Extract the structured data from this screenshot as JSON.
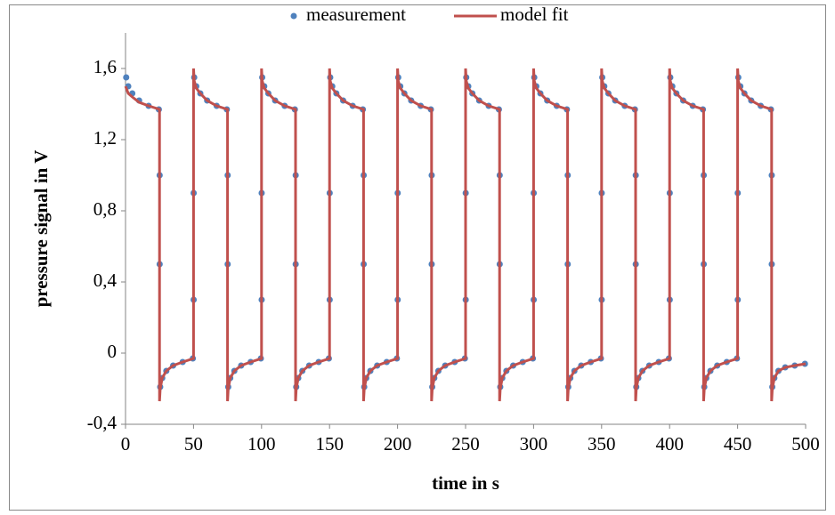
{
  "chart_data": {
    "type": "scatter-line",
    "xlabel": "time in s",
    "ylabel": "pressure signal in V",
    "xlim": [
      0,
      500
    ],
    "xticks": [
      0,
      50,
      100,
      150,
      200,
      250,
      300,
      350,
      400,
      450,
      500
    ],
    "ylim": [
      -0.4,
      1.8
    ],
    "yticks": [
      {
        "value": -0.4,
        "label": "-0,4"
      },
      0,
      {
        "value": 0.4,
        "label": "0,4"
      },
      {
        "value": 0.8,
        "label": "0,8"
      },
      {
        "value": 1.2,
        "label": "1,2"
      },
      {
        "value": 1.6,
        "label": "1,6"
      }
    ],
    "grid": false,
    "legend": "top",
    "series": [
      {
        "name": "measurement",
        "kind": "scatter",
        "color": "#4f81bd",
        "x": [
          0.5,
          2,
          5,
          10,
          17,
          24.5,
          25.1,
          25.1,
          25.5,
          27,
          30,
          35,
          42,
          49.5,
          50.1,
          50.1,
          50.5,
          52,
          55,
          60,
          67,
          74.5,
          75.1,
          75.1,
          75.5,
          77,
          80,
          85,
          92,
          99.5,
          100.1,
          100.1,
          100.5,
          102,
          105,
          110,
          117,
          124.5,
          125.1,
          125.1,
          125.5,
          127,
          130,
          135,
          142,
          149.5,
          150.1,
          150.1,
          150.5,
          152,
          155,
          160,
          167,
          174.5,
          175.1,
          175.1,
          175.5,
          177,
          180,
          185,
          192,
          199.5,
          200.1,
          200.1,
          200.5,
          202,
          205,
          210,
          217,
          224.5,
          225.1,
          225.1,
          225.5,
          227,
          230,
          235,
          242,
          249.5,
          250.1,
          250.1,
          250.5,
          252,
          255,
          260,
          267,
          274.5,
          275.1,
          275.1,
          275.5,
          277,
          280,
          285,
          292,
          299.5,
          300.1,
          300.1,
          300.5,
          302,
          305,
          310,
          317,
          324.5,
          325.1,
          325.1,
          325.5,
          327,
          330,
          335,
          342,
          349.5,
          350.1,
          350.1,
          350.5,
          352,
          355,
          360,
          367,
          374.5,
          375.1,
          375.1,
          375.5,
          377,
          380,
          385,
          392,
          399.5,
          400.1,
          400.1,
          400.5,
          402,
          405,
          410,
          417,
          424.5,
          425.1,
          425.1,
          425.5,
          427,
          430,
          435,
          442,
          449.5,
          450.1,
          450.1,
          450.5,
          452,
          455,
          460,
          467,
          474.5,
          475.1,
          475.1,
          475.5,
          477,
          480,
          485,
          492,
          499.5
        ],
        "values": [
          1.55,
          1.5,
          1.46,
          1.42,
          1.39,
          1.37,
          1,
          0.5,
          -0.19,
          -0.14,
          -0.1,
          -0.07,
          -0.05,
          -0.03,
          0.3,
          0.9,
          1.55,
          1.5,
          1.46,
          1.42,
          1.39,
          1.37,
          1,
          0.5,
          -0.19,
          -0.14,
          -0.1,
          -0.07,
          -0.05,
          -0.03,
          0.3,
          0.9,
          1.55,
          1.5,
          1.46,
          1.42,
          1.39,
          1.37,
          1,
          0.5,
          -0.19,
          -0.14,
          -0.1,
          -0.07,
          -0.05,
          -0.03,
          0.3,
          0.9,
          1.55,
          1.5,
          1.46,
          1.42,
          1.39,
          1.37,
          1,
          0.5,
          -0.19,
          -0.14,
          -0.1,
          -0.07,
          -0.05,
          -0.03,
          0.3,
          0.9,
          1.55,
          1.5,
          1.46,
          1.42,
          1.39,
          1.37,
          1,
          0.5,
          -0.19,
          -0.14,
          -0.1,
          -0.07,
          -0.05,
          -0.03,
          0.3,
          0.9,
          1.55,
          1.5,
          1.46,
          1.42,
          1.39,
          1.37,
          1,
          0.5,
          -0.19,
          -0.14,
          -0.1,
          -0.07,
          -0.05,
          -0.03,
          0.3,
          0.9,
          1.55,
          1.5,
          1.46,
          1.42,
          1.39,
          1.37,
          1,
          0.5,
          -0.19,
          -0.14,
          -0.1,
          -0.07,
          -0.05,
          -0.03,
          0.3,
          0.9,
          1.55,
          1.5,
          1.46,
          1.42,
          1.39,
          1.37,
          1,
          0.5,
          -0.19,
          -0.14,
          -0.1,
          -0.07,
          -0.05,
          -0.03,
          0.3,
          0.9,
          1.55,
          1.5,
          1.46,
          1.42,
          1.39,
          1.37,
          1,
          0.5,
          -0.19,
          -0.14,
          -0.1,
          -0.07,
          -0.05,
          -0.03,
          0.3,
          0.9,
          1.55,
          1.5,
          1.46,
          1.42,
          1.39,
          1.37,
          1,
          0.5,
          -0.19,
          -0.14,
          -0.1,
          -0.08,
          -0.07,
          -0.06
        ]
      },
      {
        "name": "model fit",
        "kind": "line",
        "color": "#c0504d",
        "x": [
          0,
          0.5,
          2,
          5,
          10,
          17,
          25,
          25,
          25.5,
          27,
          30,
          35,
          42,
          50,
          50,
          50.5,
          52,
          55,
          60,
          67,
          75,
          75,
          75.5,
          77,
          80,
          85,
          92,
          100,
          100,
          100.5,
          102,
          105,
          110,
          117,
          125,
          125,
          125.5,
          127,
          130,
          135,
          142,
          150,
          150,
          150.5,
          152,
          155,
          160,
          167,
          175,
          175,
          175.5,
          177,
          180,
          185,
          192,
          200,
          200,
          200.5,
          202,
          205,
          210,
          217,
          225,
          225,
          225.5,
          227,
          230,
          235,
          242,
          250,
          250,
          250.5,
          252,
          255,
          260,
          267,
          275,
          275,
          275.5,
          277,
          280,
          285,
          292,
          300,
          300,
          300.5,
          302,
          305,
          310,
          317,
          325,
          325,
          325.5,
          327,
          330,
          335,
          342,
          350,
          350,
          350.5,
          352,
          355,
          360,
          367,
          375,
          375,
          375.5,
          377,
          380,
          385,
          392,
          400,
          400,
          400.5,
          402,
          405,
          410,
          417,
          425,
          425,
          425.5,
          427,
          430,
          435,
          442,
          450,
          450,
          450.5,
          452,
          455,
          460,
          467,
          475,
          475,
          475.5,
          477,
          480,
          485,
          492,
          500
        ],
        "values": [
          1.5,
          1.49,
          1.46,
          1.44,
          1.41,
          1.39,
          1.37,
          -0.27,
          -0.2,
          -0.14,
          -0.1,
          -0.07,
          -0.05,
          -0.03,
          1.6,
          1.53,
          1.49,
          1.46,
          1.42,
          1.39,
          1.37,
          -0.27,
          -0.2,
          -0.14,
          -0.1,
          -0.07,
          -0.05,
          -0.03,
          1.6,
          1.53,
          1.49,
          1.46,
          1.42,
          1.39,
          1.37,
          -0.27,
          -0.2,
          -0.14,
          -0.1,
          -0.07,
          -0.05,
          -0.03,
          1.6,
          1.53,
          1.49,
          1.46,
          1.42,
          1.39,
          1.37,
          -0.27,
          -0.2,
          -0.14,
          -0.1,
          -0.07,
          -0.05,
          -0.03,
          1.6,
          1.53,
          1.49,
          1.46,
          1.42,
          1.39,
          1.37,
          -0.27,
          -0.2,
          -0.14,
          -0.1,
          -0.07,
          -0.05,
          -0.03,
          1.6,
          1.53,
          1.49,
          1.46,
          1.42,
          1.39,
          1.37,
          -0.27,
          -0.2,
          -0.14,
          -0.1,
          -0.07,
          -0.05,
          -0.03,
          1.6,
          1.53,
          1.49,
          1.46,
          1.42,
          1.39,
          1.37,
          -0.27,
          -0.2,
          -0.14,
          -0.1,
          -0.07,
          -0.05,
          -0.03,
          1.6,
          1.53,
          1.49,
          1.46,
          1.42,
          1.39,
          1.37,
          -0.27,
          -0.2,
          -0.14,
          -0.1,
          -0.07,
          -0.05,
          -0.03,
          1.6,
          1.53,
          1.49,
          1.46,
          1.42,
          1.39,
          1.37,
          -0.27,
          -0.2,
          -0.14,
          -0.1,
          -0.07,
          -0.05,
          -0.03,
          1.6,
          1.53,
          1.49,
          1.46,
          1.42,
          1.39,
          1.37,
          -0.27,
          -0.2,
          -0.14,
          -0.1,
          -0.08,
          -0.07,
          -0.06
        ]
      }
    ]
  }
}
